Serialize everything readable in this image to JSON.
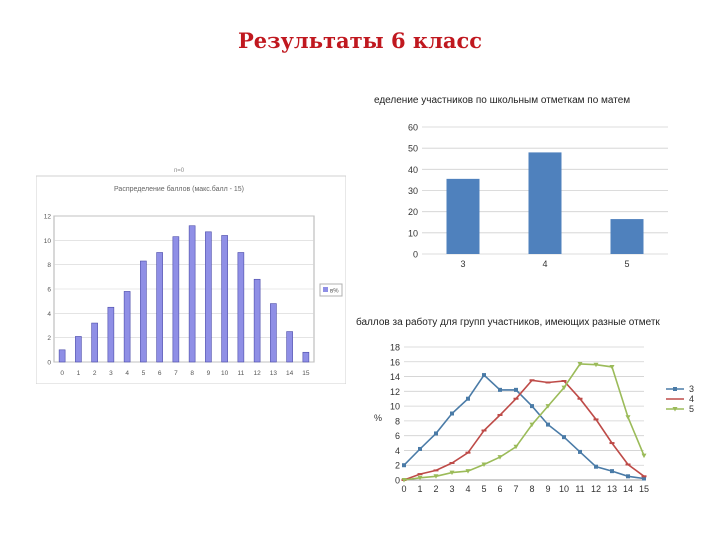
{
  "page": {
    "title": "Результаты 6 класс"
  },
  "chart_data": [
    {
      "type": "bar",
      "title": "Распределение баллов (макс.балл - 15)",
      "title_top": "п=0",
      "categories": [
        "0",
        "1",
        "2",
        "3",
        "4",
        "5",
        "6",
        "7",
        "8",
        "9",
        "10",
        "11",
        "12",
        "13",
        "14",
        "15"
      ],
      "values": [
        1.0,
        2.1,
        3.2,
        4.5,
        5.8,
        8.3,
        9.0,
        10.3,
        11.2,
        10.7,
        10.4,
        9.0,
        6.8,
        4.8,
        2.5,
        0.8
      ],
      "y_ticks": [
        "0",
        "2",
        "4",
        "6",
        "8",
        "10",
        "12"
      ],
      "ylim": [
        0,
        12
      ],
      "legend": [
        "в%"
      ],
      "legend_position": "right",
      "grid": true,
      "color": "#8f8fe6"
    },
    {
      "type": "bar",
      "title": "еделение участников по школьным отметкам по матем",
      "categories": [
        "3",
        "4",
        "5"
      ],
      "values": [
        35.5,
        48,
        16.5
      ],
      "y_ticks": [
        "0",
        "10",
        "20",
        "30",
        "40",
        "50",
        "60"
      ],
      "ylim": [
        0,
        60
      ],
      "grid": true,
      "color": "#4f81bd"
    },
    {
      "type": "line",
      "title": "баллов за работу для групп участников, имеющих разные отметк",
      "ylabel": "%",
      "x": [
        "0",
        "1",
        "2",
        "3",
        "4",
        "5",
        "6",
        "7",
        "8",
        "9",
        "10",
        "11",
        "12",
        "13",
        "14",
        "15"
      ],
      "y_ticks": [
        "0",
        "2",
        "4",
        "6",
        "8",
        "10",
        "12",
        "14",
        "16",
        "18"
      ],
      "ylim": [
        0,
        18
      ],
      "grid": true,
      "legend_position": "right",
      "series": [
        {
          "name": "3",
          "color": "#4a7ba7",
          "marker": "square",
          "values": [
            2,
            4.2,
            6.3,
            9,
            11,
            14.2,
            12.2,
            12.2,
            10,
            7.5,
            5.8,
            3.8,
            1.8,
            1.2,
            0.5,
            0.2
          ]
        },
        {
          "name": "4",
          "color": "#be4b48",
          "marker": "dash",
          "values": [
            0,
            0.8,
            1.3,
            2.3,
            3.7,
            6.7,
            8.8,
            11,
            13.5,
            13.2,
            13.4,
            11,
            8.2,
            5,
            2.1,
            0.5
          ]
        },
        {
          "name": "5",
          "color": "#9bbb59",
          "marker": "triangle",
          "values": [
            0,
            0.3,
            0.5,
            1,
            1.2,
            2.1,
            3.1,
            4.5,
            7.5,
            10,
            12.5,
            15.7,
            15.6,
            15.3,
            8.5,
            3.3
          ]
        }
      ]
    }
  ]
}
